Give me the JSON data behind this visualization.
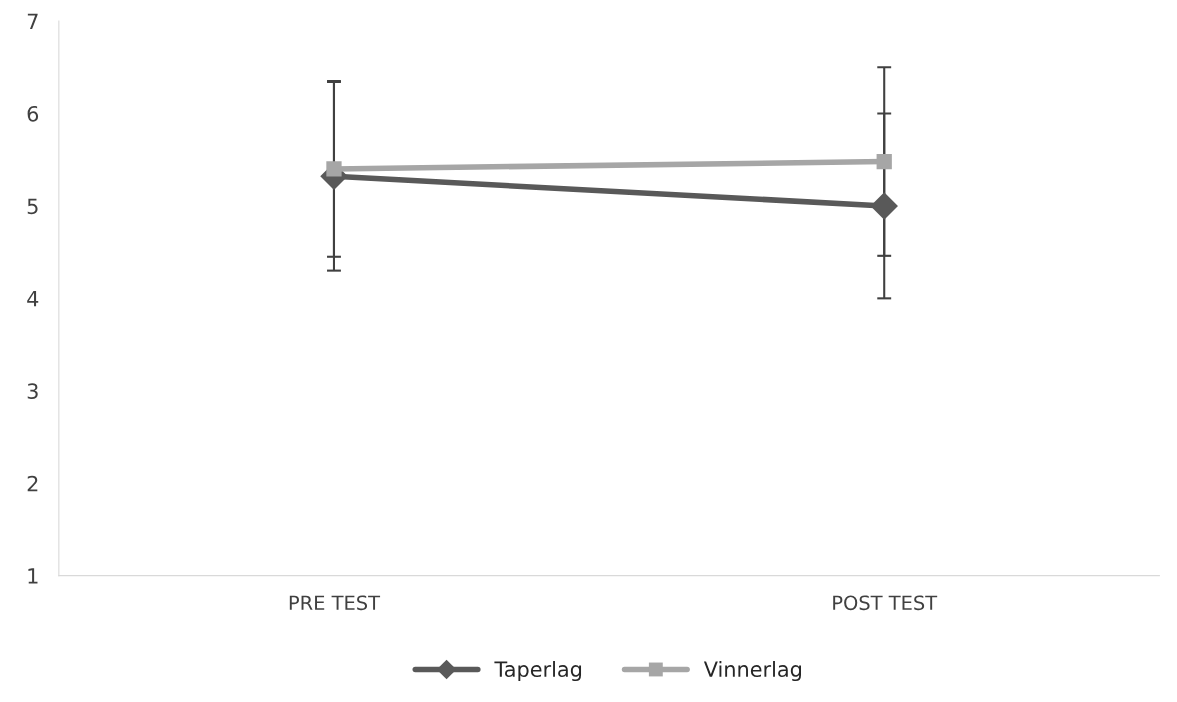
{
  "chart_data": {
    "type": "line",
    "categories": [
      "PRE TEST",
      "POST TEST"
    ],
    "series": [
      {
        "name": "Taperlag",
        "color": "#595959",
        "marker": "diamond",
        "values": [
          5.32,
          5.0
        ],
        "errors": [
          1.02,
          1.0
        ]
      },
      {
        "name": "Vinnerlag",
        "color": "#a6a6a6",
        "marker": "square",
        "values": [
          5.4,
          5.48
        ],
        "errors": [
          0.95,
          1.02
        ]
      }
    ],
    "ylim": [
      1,
      7
    ],
    "yticks": [
      1,
      2,
      3,
      4,
      5,
      6,
      7
    ],
    "grid": false,
    "legend": "bottom"
  }
}
